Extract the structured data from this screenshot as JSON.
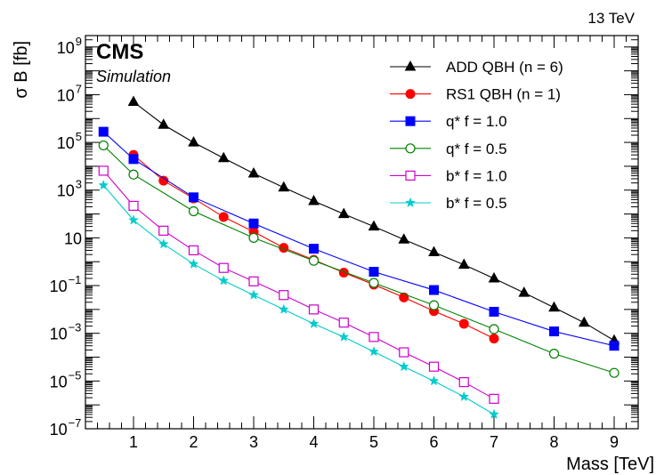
{
  "header": {
    "energy_label": "13 TeV",
    "experiment_label": "CMS",
    "status_label": "Simulation"
  },
  "chart_data": {
    "type": "line",
    "xlabel": "Mass [TeV]",
    "ylabel": "σ B [fb]",
    "ylog": true,
    "xlim": [
      0.2,
      9.4
    ],
    "ylim": [
      1e-07,
      3000000000.0
    ],
    "grid": false,
    "legend_position": "top-right",
    "x_ticks": [
      {
        "value": 1,
        "label": "1"
      },
      {
        "value": 2,
        "label": "2"
      },
      {
        "value": 3,
        "label": "3"
      },
      {
        "value": 4,
        "label": "4"
      },
      {
        "value": 5,
        "label": "5"
      },
      {
        "value": 6,
        "label": "6"
      },
      {
        "value": 7,
        "label": "7"
      },
      {
        "value": 8,
        "label": "8"
      },
      {
        "value": 9,
        "label": "9"
      }
    ],
    "y_ticks": [
      {
        "exp": -7,
        "base": "10",
        "sup": "−7"
      },
      {
        "exp": -5,
        "base": "10",
        "sup": "−5"
      },
      {
        "exp": -3,
        "base": "10",
        "sup": "−3"
      },
      {
        "exp": -1,
        "base": "10",
        "sup": "−1"
      },
      {
        "exp": 1,
        "base": "10",
        "sup": ""
      },
      {
        "exp": 3,
        "base": "10",
        "sup": "3"
      },
      {
        "exp": 5,
        "base": "10",
        "sup": "5"
      },
      {
        "exp": 7,
        "base": "10",
        "sup": "7"
      },
      {
        "exp": 9,
        "base": "10",
        "sup": "9"
      }
    ],
    "series": [
      {
        "name": "ADD QBH (n = 6)",
        "color": "#000000",
        "marker": "triangle-filled",
        "x": [
          1,
          1.5,
          2,
          2.5,
          3,
          3.5,
          4,
          4.5,
          5,
          5.5,
          6,
          6.5,
          7,
          7.5,
          8,
          8.5,
          9
        ],
        "y": [
          5000000.0,
          550000.0,
          100000.0,
          22000.0,
          5000.0,
          1300.0,
          350.0,
          100.0,
          30.0,
          8.5,
          2.5,
          0.75,
          0.2,
          0.05,
          0.012,
          0.0028,
          0.0005
        ]
      },
      {
        "name": "RS1 QBH (n = 1)",
        "color": "#ff0000",
        "marker": "circle-filled",
        "x": [
          1,
          1.5,
          2,
          2.5,
          3,
          3.5,
          4,
          4.5,
          5,
          5.5,
          6,
          6.5,
          7
        ],
        "y": [
          30000.0,
          2500.0,
          450.0,
          75.0,
          18.0,
          3.8,
          1.2,
          0.35,
          0.11,
          0.032,
          0.0085,
          0.0025,
          0.0006
        ]
      },
      {
        "name": "q* f = 1.0",
        "color": "#0000ff",
        "marker": "square-filled",
        "x": [
          0.5,
          1,
          2,
          3,
          4,
          5,
          6,
          7,
          8,
          9
        ],
        "y": [
          280000.0,
          20000.0,
          500.0,
          40.0,
          3.5,
          0.38,
          0.065,
          0.008,
          0.0012,
          0.0003
        ]
      },
      {
        "name": "q* f = 0.5",
        "color": "#008000",
        "marker": "circle-open",
        "x": [
          0.5,
          1,
          2,
          3,
          4,
          5,
          6,
          7,
          8,
          9
        ],
        "y": [
          75000.0,
          4500.0,
          130.0,
          10.0,
          1.1,
          0.13,
          0.015,
          0.0015,
          0.00014,
          2.2e-05
        ]
      },
      {
        "name": "b* f = 1.0",
        "color": "#cc00cc",
        "marker": "square-open",
        "x": [
          0.5,
          1,
          1.5,
          2,
          2.5,
          3,
          3.5,
          4,
          4.5,
          5,
          5.5,
          6,
          6.5,
          7
        ],
        "y": [
          6500.0,
          220.0,
          20.0,
          3.0,
          0.55,
          0.15,
          0.04,
          0.01,
          0.0028,
          0.0007,
          0.00016,
          4e-05,
          9e-06,
          1.8e-06
        ]
      },
      {
        "name": "b* f = 0.5",
        "color": "#00cccc",
        "marker": "star",
        "x": [
          0.5,
          1,
          1.5,
          2,
          2.5,
          3,
          3.5,
          4,
          4.5,
          5,
          5.5,
          6,
          6.5,
          7
        ],
        "y": [
          1600.0,
          55.0,
          5.5,
          0.8,
          0.16,
          0.04,
          0.01,
          0.0025,
          0.0007,
          0.00017,
          4e-05,
          1e-05,
          2.2e-06,
          4e-07
        ]
      }
    ]
  }
}
